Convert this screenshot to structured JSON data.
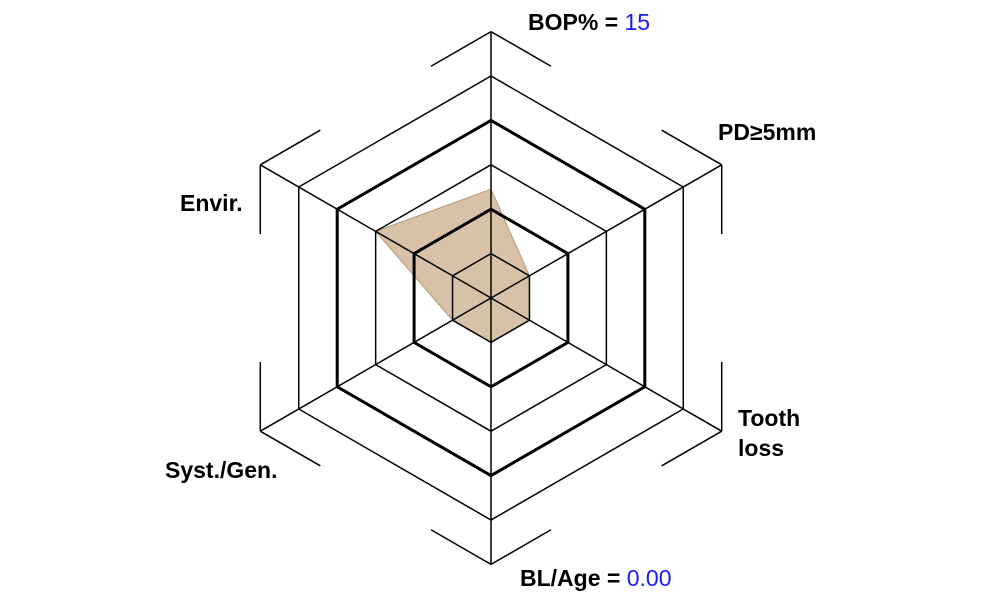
{
  "colors": {
    "polygon_fill": "#c9ae8a",
    "polygon_stroke": "#b59a76",
    "value_text": "#1a1aff",
    "grid": "#000000"
  },
  "chart_data": {
    "type": "radar",
    "axes": [
      "BOP%",
      "PD≥5mm",
      "Tooth loss",
      "BL/Age",
      "Syst./Gen.",
      "Envir."
    ],
    "rings": 5,
    "thick_rings": [
      2,
      4
    ],
    "values": [
      2.45,
      1,
      1,
      1,
      1,
      3
    ]
  },
  "labels": {
    "bop": {
      "name": "BOP% = ",
      "value": "15"
    },
    "pd": {
      "name": "PD≥5mm"
    },
    "tooth_loss": {
      "line1": "Tooth",
      "line2": "loss"
    },
    "bl_age": {
      "name": "BL/Age = ",
      "value": "0.00"
    },
    "syst_gen": {
      "name": "Syst./Gen."
    },
    "envir": {
      "name": "Envir."
    }
  }
}
